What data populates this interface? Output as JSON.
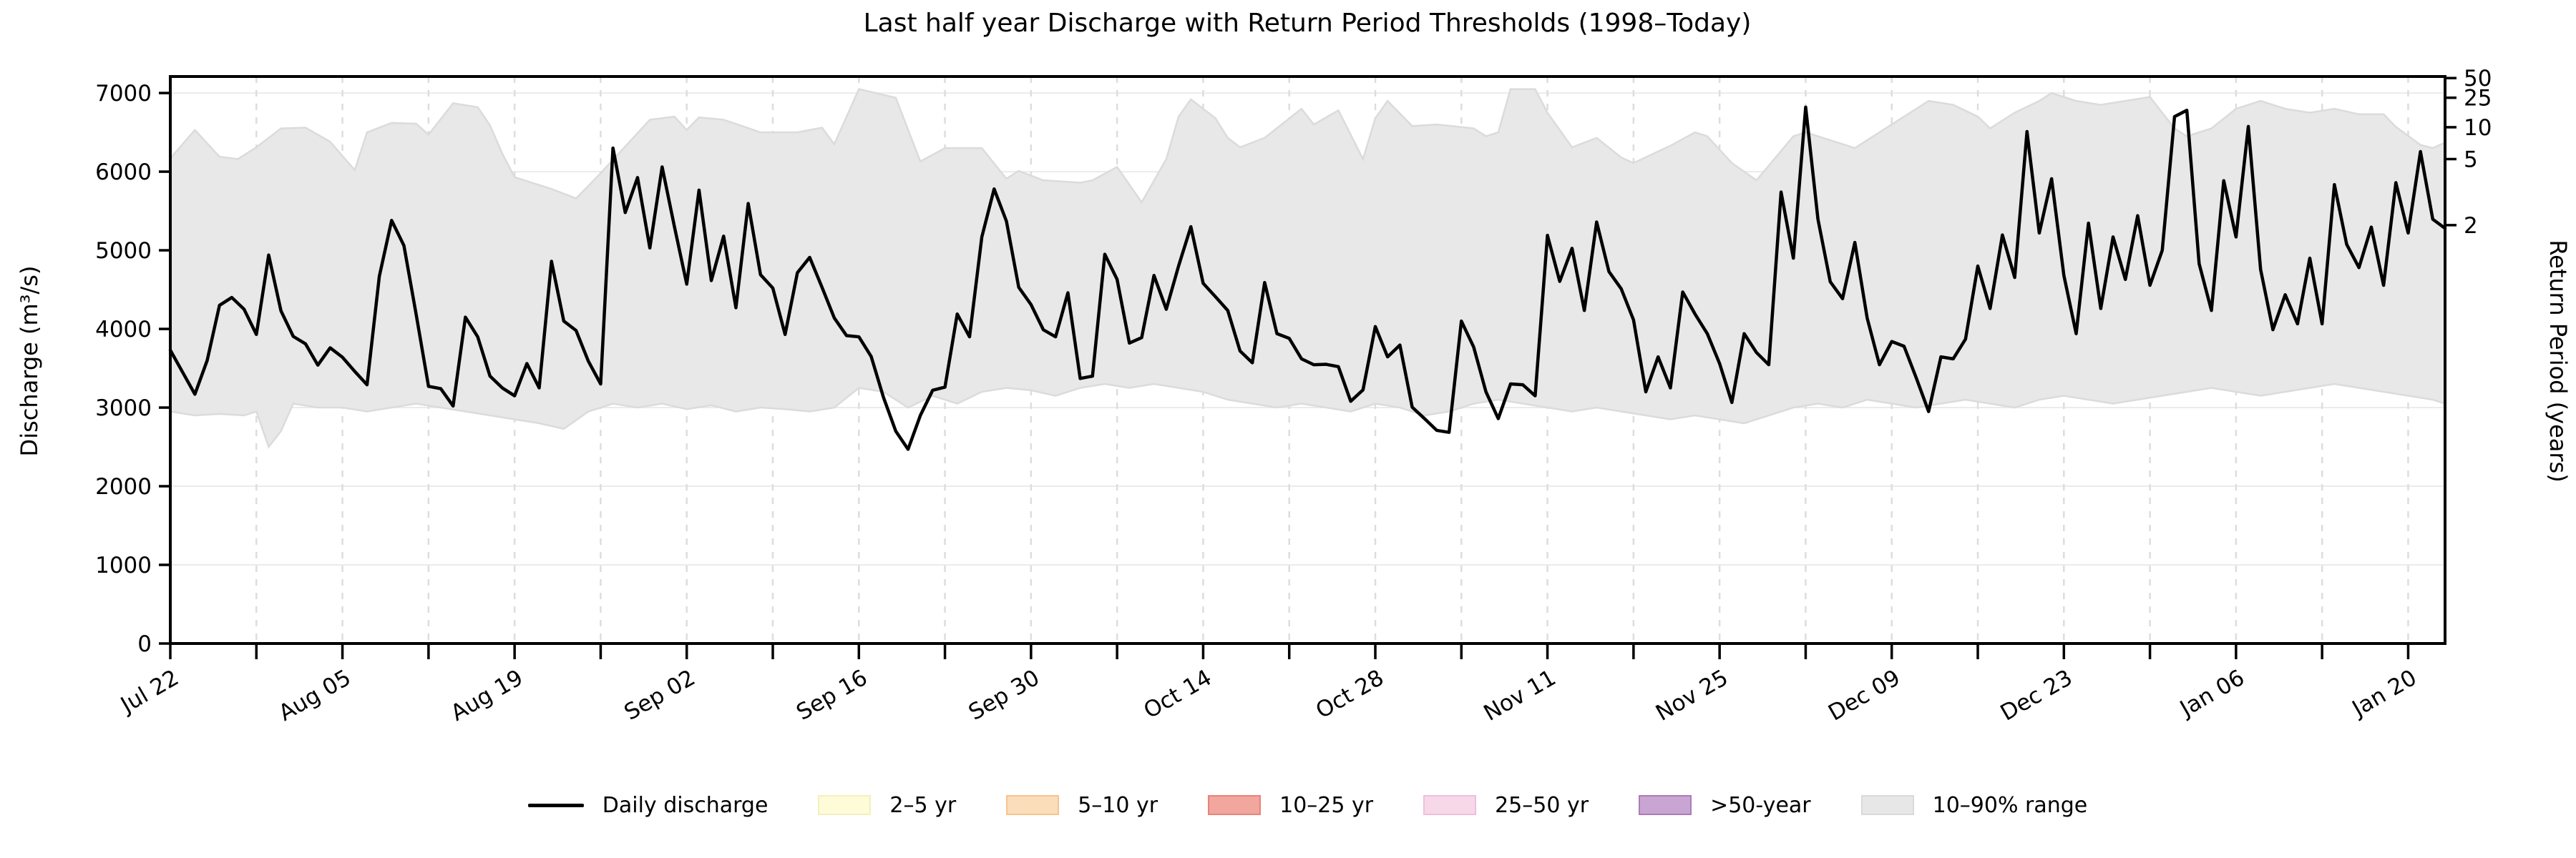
{
  "chart_data": {
    "type": "line",
    "title": "Last half year Discharge with Return Period Thresholds (1998–Today)",
    "ylabel_left": "Discharge (m³/s)",
    "ylabel_right": "Return Period (years)",
    "ylim": [
      0,
      7210
    ],
    "yticks_left": [
      0,
      1000,
      2000,
      3000,
      4000,
      5000,
      6000,
      7000
    ],
    "right_axis_ticks": [
      {
        "label": "50",
        "discharge": 7190
      },
      {
        "label": "25",
        "discharge": 6940
      },
      {
        "label": "10",
        "discharge": 6565
      },
      {
        "label": "5",
        "discharge": 6160
      },
      {
        "label": "2",
        "discharge": 5320
      }
    ],
    "x_tick_labels": [
      "Jul 22",
      "Aug 05",
      "Aug 19",
      "Sep 02",
      "Sep 16",
      "Sep 30",
      "Oct 14",
      "Oct 28",
      "Nov 11",
      "Nov 25",
      "Dec 09",
      "Dec 23",
      "Jan 06",
      "Jan 20"
    ],
    "x_label_step_days": 14,
    "x_minor_tick_step_days": 7,
    "x_total_days": 185,
    "grid": {
      "horizontal": true,
      "vertical_dashed": true
    },
    "series": [
      {
        "name": "Daily discharge",
        "color": "#000000",
        "x_start_day": 0,
        "values": [
          3730,
          3450,
          3170,
          3600,
          4300,
          4400,
          4250,
          3930,
          4940,
          4230,
          3905,
          3810,
          3540,
          3760,
          3640,
          3460,
          3290,
          4670,
          5380,
          5060,
          4180,
          3270,
          3240,
          3020,
          4150,
          3900,
          3400,
          3250,
          3150,
          3560,
          3250,
          4860,
          4100,
          3980,
          3590,
          3300,
          6300,
          5480,
          5925,
          5030,
          6060,
          5300,
          4570,
          5765,
          4615,
          5180,
          4270,
          5595,
          4690,
          4520,
          3930,
          4715,
          4910,
          4530,
          4140,
          3915,
          3900,
          3650,
          3130,
          2700,
          2470,
          2900,
          3220,
          3260,
          4190,
          3900,
          5170,
          5780,
          5370,
          4530,
          4310,
          3990,
          3900,
          4460,
          3370,
          3400,
          4950,
          4630,
          3820,
          3890,
          4680,
          4250,
          4800,
          5300,
          4580,
          4410,
          4235,
          3720,
          3570,
          4590,
          3940,
          3880,
          3620,
          3545,
          3550,
          3520,
          3080,
          3225,
          4030,
          3645,
          3795,
          3005,
          2860,
          2710,
          2685,
          4100,
          3770,
          3200,
          2860,
          3300,
          3290,
          3150,
          5190,
          4605,
          5025,
          4235,
          5360,
          4730,
          4510,
          4115,
          3200,
          3645,
          3250,
          4470,
          4190,
          3940,
          3560,
          3065,
          3940,
          3700,
          3545,
          5740,
          4900,
          6820,
          5395,
          4600,
          4385,
          5100,
          4140,
          3545,
          3840,
          3780,
          3375,
          2950,
          3645,
          3620,
          3870,
          4800,
          4260,
          5195,
          4655,
          6510,
          5220,
          5910,
          4680,
          3940,
          5345,
          4260,
          5170,
          4630,
          5440,
          4555,
          5000,
          6700,
          6780,
          4830,
          4235,
          5885,
          5170,
          6575,
          4755,
          3990,
          4435,
          4065,
          4900,
          4065,
          5835,
          5075,
          4780,
          5295,
          4555,
          5860,
          5220,
          6255,
          5395,
          5280
        ]
      }
    ],
    "band": {
      "name": "10–90% range",
      "fill": "#E8E8E8",
      "edge": "#DBDBDB",
      "upper": [
        [
          0,
          6170
        ],
        [
          2,
          6530
        ],
        [
          4,
          6190
        ],
        [
          5.5,
          6160
        ],
        [
          7,
          6310
        ],
        [
          9,
          6550
        ],
        [
          11,
          6560
        ],
        [
          13,
          6380
        ],
        [
          15,
          6020
        ],
        [
          16,
          6500
        ],
        [
          18,
          6620
        ],
        [
          20,
          6610
        ],
        [
          21,
          6470
        ],
        [
          23,
          6870
        ],
        [
          25,
          6820
        ],
        [
          26,
          6590
        ],
        [
          27,
          6230
        ],
        [
          28,
          5930
        ],
        [
          31,
          5780
        ],
        [
          33,
          5660
        ],
        [
          35,
          5980
        ],
        [
          37,
          6320
        ],
        [
          39,
          6660
        ],
        [
          41,
          6700
        ],
        [
          42,
          6530
        ],
        [
          43,
          6690
        ],
        [
          45,
          6660
        ],
        [
          48,
          6500
        ],
        [
          51,
          6500
        ],
        [
          53,
          6560
        ],
        [
          54,
          6350
        ],
        [
          56,
          7050
        ],
        [
          59,
          6940
        ],
        [
          61,
          6130
        ],
        [
          63,
          6300
        ],
        [
          66,
          6300
        ],
        [
          68,
          5910
        ],
        [
          69,
          6010
        ],
        [
          71,
          5890
        ],
        [
          74,
          5860
        ],
        [
          75,
          5890
        ],
        [
          77,
          6060
        ],
        [
          79,
          5610
        ],
        [
          81,
          6160
        ],
        [
          82,
          6700
        ],
        [
          83,
          6920
        ],
        [
          85,
          6680
        ],
        [
          86,
          6430
        ],
        [
          87,
          6310
        ],
        [
          89,
          6430
        ],
        [
          92,
          6800
        ],
        [
          93,
          6600
        ],
        [
          95,
          6780
        ],
        [
          97,
          6160
        ],
        [
          98,
          6680
        ],
        [
          99,
          6900
        ],
        [
          101,
          6580
        ],
        [
          103,
          6600
        ],
        [
          106,
          6550
        ],
        [
          107,
          6450
        ],
        [
          108,
          6500
        ],
        [
          109,
          7050
        ],
        [
          111,
          7050
        ],
        [
          112,
          6750
        ],
        [
          114,
          6310
        ],
        [
          116,
          6430
        ],
        [
          118,
          6180
        ],
        [
          119,
          6110
        ],
        [
          122,
          6330
        ],
        [
          124,
          6500
        ],
        [
          125,
          6450
        ],
        [
          127,
          6110
        ],
        [
          129,
          5890
        ],
        [
          132,
          6450
        ],
        [
          133,
          6500
        ],
        [
          135,
          6400
        ],
        [
          137,
          6300
        ],
        [
          139,
          6500
        ],
        [
          141,
          6700
        ],
        [
          143,
          6900
        ],
        [
          145,
          6850
        ],
        [
          147,
          6700
        ],
        [
          148,
          6550
        ],
        [
          150,
          6750
        ],
        [
          152,
          6900
        ],
        [
          153,
          7000
        ],
        [
          155,
          6900
        ],
        [
          157,
          6850
        ],
        [
          159,
          6900
        ],
        [
          161,
          6950
        ],
        [
          163,
          6550
        ],
        [
          164,
          6450
        ],
        [
          166,
          6550
        ],
        [
          168,
          6800
        ],
        [
          170,
          6900
        ],
        [
          172,
          6800
        ],
        [
          174,
          6750
        ],
        [
          176,
          6800
        ],
        [
          178,
          6730
        ],
        [
          180,
          6730
        ],
        [
          181,
          6570
        ],
        [
          183,
          6340
        ],
        [
          184,
          6300
        ],
        [
          185,
          6370
        ]
      ],
      "lower": [
        [
          0,
          2950
        ],
        [
          2,
          2900
        ],
        [
          4,
          2920
        ],
        [
          6,
          2900
        ],
        [
          7,
          2950
        ],
        [
          8,
          2500
        ],
        [
          9,
          2700
        ],
        [
          10,
          3050
        ],
        [
          12,
          3000
        ],
        [
          14,
          3000
        ],
        [
          16,
          2950
        ],
        [
          18,
          3000
        ],
        [
          20,
          3050
        ],
        [
          22,
          3000
        ],
        [
          24,
          2950
        ],
        [
          26,
          2900
        ],
        [
          28,
          2850
        ],
        [
          30,
          2800
        ],
        [
          32,
          2730
        ],
        [
          34,
          2950
        ],
        [
          36,
          3050
        ],
        [
          38,
          3000
        ],
        [
          40,
          3050
        ],
        [
          42,
          2980
        ],
        [
          44,
          3030
        ],
        [
          46,
          2950
        ],
        [
          48,
          3000
        ],
        [
          50,
          2980
        ],
        [
          52,
          2950
        ],
        [
          54,
          3000
        ],
        [
          56,
          3250
        ],
        [
          58,
          3200
        ],
        [
          60,
          3000
        ],
        [
          62,
          3150
        ],
        [
          64,
          3050
        ],
        [
          66,
          3200
        ],
        [
          68,
          3250
        ],
        [
          70,
          3220
        ],
        [
          72,
          3150
        ],
        [
          74,
          3250
        ],
        [
          76,
          3300
        ],
        [
          78,
          3250
        ],
        [
          80,
          3300
        ],
        [
          82,
          3250
        ],
        [
          84,
          3200
        ],
        [
          86,
          3100
        ],
        [
          88,
          3050
        ],
        [
          90,
          3000
        ],
        [
          92,
          3050
        ],
        [
          94,
          3000
        ],
        [
          96,
          2950
        ],
        [
          98,
          3050
        ],
        [
          100,
          3000
        ],
        [
          102,
          2900
        ],
        [
          104,
          2950
        ],
        [
          106,
          3050
        ],
        [
          108,
          3100
        ],
        [
          110,
          3050
        ],
        [
          112,
          3000
        ],
        [
          114,
          2950
        ],
        [
          116,
          3000
        ],
        [
          118,
          2950
        ],
        [
          120,
          2900
        ],
        [
          122,
          2850
        ],
        [
          124,
          2900
        ],
        [
          126,
          2850
        ],
        [
          128,
          2800
        ],
        [
          130,
          2900
        ],
        [
          132,
          3000
        ],
        [
          134,
          3050
        ],
        [
          136,
          3000
        ],
        [
          138,
          3100
        ],
        [
          140,
          3050
        ],
        [
          142,
          3000
        ],
        [
          144,
          3050
        ],
        [
          146,
          3100
        ],
        [
          148,
          3050
        ],
        [
          150,
          3000
        ],
        [
          152,
          3100
        ],
        [
          154,
          3150
        ],
        [
          156,
          3100
        ],
        [
          158,
          3050
        ],
        [
          160,
          3100
        ],
        [
          162,
          3150
        ],
        [
          164,
          3200
        ],
        [
          166,
          3250
        ],
        [
          168,
          3200
        ],
        [
          170,
          3150
        ],
        [
          172,
          3200
        ],
        [
          174,
          3250
        ],
        [
          176,
          3300
        ],
        [
          178,
          3250
        ],
        [
          180,
          3200
        ],
        [
          182,
          3150
        ],
        [
          184,
          3100
        ],
        [
          185,
          3050
        ]
      ]
    },
    "legend": [
      {
        "label": "Daily discharge",
        "type": "line",
        "color": "#000000"
      },
      {
        "label": "2–5 yr",
        "type": "patch",
        "fill": "#FDFBD8",
        "edge": "#F5EFBE"
      },
      {
        "label": "5–10 yr",
        "type": "patch",
        "fill": "#FBDDB9",
        "edge": "#F5C48E"
      },
      {
        "label": "10–25 yr",
        "type": "patch",
        "fill": "#F1A69E",
        "edge": "#E9837A"
      },
      {
        "label": "25–50 yr",
        "type": "patch",
        "fill": "#F7D8E9",
        "edge": "#F0BEDC"
      },
      {
        "label": ">50-year",
        "type": "patch",
        "fill": "#C9A5D3",
        "edge": "#AB7CB8"
      },
      {
        "label": "10–90% range",
        "type": "patch",
        "fill": "#E7E7E7",
        "edge": "#D9D9D9"
      }
    ],
    "style": {
      "background": "#FFFFFF",
      "line_color": "#000000",
      "grid_h_color": "#EBEBEB",
      "grid_v_color": "#DDDDDD",
      "spine_color": "#000000",
      "band_fill": "#E8E8E8",
      "band_edge": "#DBDBDB"
    }
  }
}
